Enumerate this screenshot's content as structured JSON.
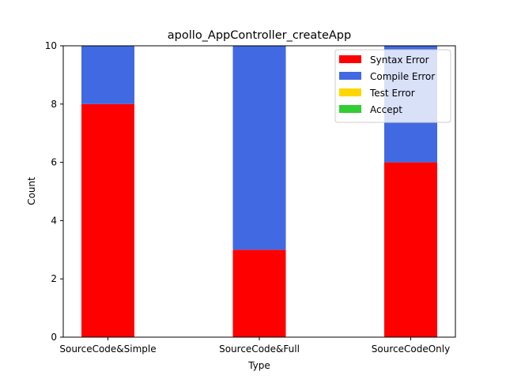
{
  "chart_data": {
    "type": "bar",
    "stacked": true,
    "title": "apollo_AppController_createApp",
    "xlabel": "Type",
    "ylabel": "Count",
    "categories": [
      "SourceCode&Simple",
      "SourceCode&Full",
      "SourceCodeOnly"
    ],
    "ylim": [
      0,
      10
    ],
    "yticks": [
      "0",
      "2",
      "4",
      "6",
      "8",
      "10"
    ],
    "series": [
      {
        "name": "Syntax Error",
        "color": "#ff0000",
        "values": [
          8,
          3,
          6
        ]
      },
      {
        "name": "Compile Error",
        "color": "#4169e1",
        "values": [
          2,
          7,
          4
        ]
      },
      {
        "name": "Test Error",
        "color": "#ffd700",
        "values": [
          0,
          0,
          0
        ]
      },
      {
        "name": "Accept",
        "color": "#32cd32",
        "values": [
          0,
          0,
          0
        ]
      }
    ],
    "legend_position": "top-right",
    "grid": false
  }
}
